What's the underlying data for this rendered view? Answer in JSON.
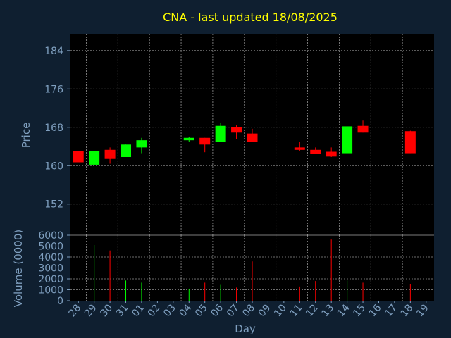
{
  "title": "CNA - last updated 18/08/2025",
  "colors": {
    "background": "#0f1f30",
    "panel": "#000000",
    "title": "#ffff00",
    "text": "#7f9fbf",
    "grid": "#d0d0d0",
    "up": "#00ff00",
    "down": "#ff0000"
  },
  "chart_data": [
    {
      "type": "candlestick",
      "ylabel": "Price",
      "ylim": [
        145.5,
        187.5
      ],
      "yticks": [
        152,
        160,
        168,
        176,
        184
      ],
      "grid": true,
      "candles": [
        {
          "day": "28",
          "open": 163.0,
          "high": 163.0,
          "low": 160.7,
          "close": 160.7
        },
        {
          "day": "29",
          "open": 160.2,
          "high": 163.1,
          "low": 160.2,
          "close": 163.1
        },
        {
          "day": "30",
          "open": 163.3,
          "high": 163.8,
          "low": 160.4,
          "close": 161.4
        },
        {
          "day": "31",
          "open": 161.8,
          "high": 164.4,
          "low": 161.8,
          "close": 164.4
        },
        {
          "day": "01",
          "open": 163.8,
          "high": 165.8,
          "low": 162.6,
          "close": 165.3
        },
        {
          "day": "04",
          "open": 165.3,
          "high": 166.0,
          "low": 164.9,
          "close": 165.8
        },
        {
          "day": "05",
          "open": 165.8,
          "high": 165.8,
          "low": 162.8,
          "close": 164.4
        },
        {
          "day": "06",
          "open": 165.0,
          "high": 169.0,
          "low": 165.0,
          "close": 168.3
        },
        {
          "day": "07",
          "open": 168.0,
          "high": 168.4,
          "low": 165.6,
          "close": 166.9
        },
        {
          "day": "08",
          "open": 166.7,
          "high": 167.7,
          "low": 165.0,
          "close": 165.0
        },
        {
          "day": "11",
          "open": 163.8,
          "high": 164.9,
          "low": 163.1,
          "close": 163.3
        },
        {
          "day": "12",
          "open": 163.3,
          "high": 163.8,
          "low": 162.4,
          "close": 162.4
        },
        {
          "day": "13",
          "open": 162.9,
          "high": 163.8,
          "low": 161.8,
          "close": 161.9
        },
        {
          "day": "14",
          "open": 162.6,
          "high": 168.2,
          "low": 162.6,
          "close": 168.2
        },
        {
          "day": "15",
          "open": 168.3,
          "high": 169.4,
          "low": 166.9,
          "close": 166.9
        },
        {
          "day": "18",
          "open": 167.2,
          "high": 167.3,
          "low": 162.6,
          "close": 162.6
        }
      ]
    },
    {
      "type": "bar",
      "ylabel": "Volume (0000)",
      "xlabel": "Day",
      "ylim": [
        0,
        6000
      ],
      "yticks": [
        0,
        1000,
        2000,
        3000,
        4000,
        5000,
        6000
      ],
      "grid": true,
      "categories": [
        "28",
        "29",
        "30",
        "31",
        "01",
        "02",
        "03",
        "04",
        "05",
        "06",
        "07",
        "08",
        "09",
        "10",
        "11",
        "12",
        "13",
        "14",
        "15",
        "16",
        "17",
        "18",
        "19"
      ],
      "volumes": [
        {
          "day": "29",
          "value": 5100,
          "dir": "up"
        },
        {
          "day": "30",
          "value": 4600,
          "dir": "down"
        },
        {
          "day": "31",
          "value": 1850,
          "dir": "up"
        },
        {
          "day": "01",
          "value": 1650,
          "dir": "up"
        },
        {
          "day": "04",
          "value": 1100,
          "dir": "up"
        },
        {
          "day": "05",
          "value": 1650,
          "dir": "down"
        },
        {
          "day": "06",
          "value": 1450,
          "dir": "up"
        },
        {
          "day": "07",
          "value": 1200,
          "dir": "down"
        },
        {
          "day": "08",
          "value": 3600,
          "dir": "down"
        },
        {
          "day": "11",
          "value": 1300,
          "dir": "down"
        },
        {
          "day": "12",
          "value": 1800,
          "dir": "down"
        },
        {
          "day": "13",
          "value": 5600,
          "dir": "down"
        },
        {
          "day": "14",
          "value": 1850,
          "dir": "up"
        },
        {
          "day": "15",
          "value": 1650,
          "dir": "down"
        },
        {
          "day": "18",
          "value": 1500,
          "dir": "down"
        }
      ]
    }
  ]
}
